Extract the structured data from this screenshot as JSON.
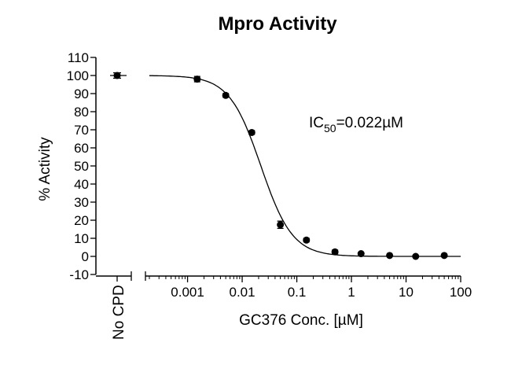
{
  "chart_data": {
    "type": "scatter",
    "title": "Mpro Activity",
    "ylabel": "% Activity",
    "xlabel": "GC376 Conc. [µM]",
    "control_label": "No CPD",
    "annotation": {
      "prefix": "IC",
      "subscript": "50",
      "suffix": "=0.022µM"
    },
    "ylim": [
      -10,
      110
    ],
    "yticks": [
      -10,
      0,
      10,
      20,
      30,
      40,
      50,
      60,
      70,
      80,
      90,
      100,
      110
    ],
    "xscale": "log",
    "xlim": [
      0.0002,
      100
    ],
    "xticks": [
      0.001,
      0.01,
      0.1,
      1,
      10,
      100
    ],
    "xtick_labels": [
      "0.001",
      "0.01",
      "0.1",
      "1",
      "10",
      "100"
    ],
    "control_point": {
      "y": 100,
      "err": 1.5
    },
    "points": [
      {
        "x": 0.0015,
        "y": 98,
        "err": 1.5
      },
      {
        "x": 0.005,
        "y": 89,
        "err": 1.0
      },
      {
        "x": 0.015,
        "y": 68.5,
        "err": 1.0
      },
      {
        "x": 0.05,
        "y": 17.5,
        "err": 2.0
      },
      {
        "x": 0.15,
        "y": 9,
        "err": 1.0
      },
      {
        "x": 0.5,
        "y": 2.5,
        "err": 1.0
      },
      {
        "x": 1.5,
        "y": 1.5,
        "err": 0.5
      },
      {
        "x": 5,
        "y": 0.5,
        "err": 0.5
      },
      {
        "x": 15,
        "y": 0,
        "err": 0.5
      },
      {
        "x": 50,
        "y": 0.5,
        "err": 0.5
      }
    ],
    "fit": {
      "top": 100,
      "bottom": 0,
      "ic50": 0.022,
      "hill": 1.5
    }
  }
}
